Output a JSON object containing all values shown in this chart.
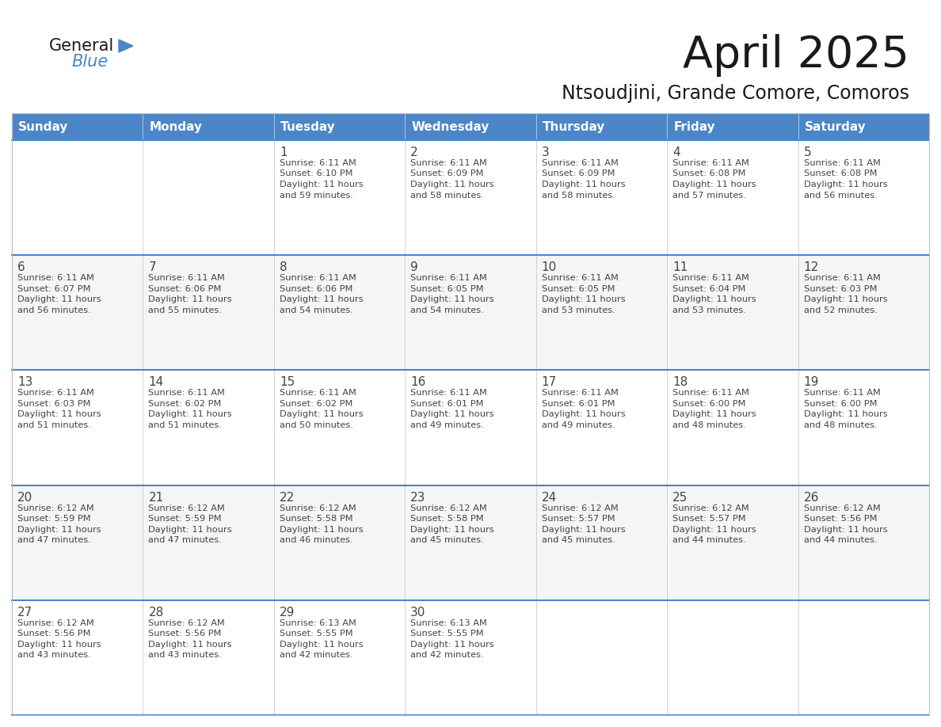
{
  "title": "April 2025",
  "subtitle": "Ntsoudjini, Grande Comore, Comoros",
  "header_bg_color": "#4a86c8",
  "header_text_color": "#ffffff",
  "row_bg_light": "#f5f5f5",
  "row_bg_white": "#ffffff",
  "divider_color": "#4a86c8",
  "text_color": "#444444",
  "days_of_week": [
    "Sunday",
    "Monday",
    "Tuesday",
    "Wednesday",
    "Thursday",
    "Friday",
    "Saturday"
  ],
  "calendar_data": [
    [
      {
        "day": "",
        "sunrise": "",
        "sunset": "",
        "daylight": ""
      },
      {
        "day": "",
        "sunrise": "",
        "sunset": "",
        "daylight": ""
      },
      {
        "day": "1",
        "sunrise": "Sunrise: 6:11 AM",
        "sunset": "Sunset: 6:10 PM",
        "daylight": "Daylight: 11 hours\nand 59 minutes."
      },
      {
        "day": "2",
        "sunrise": "Sunrise: 6:11 AM",
        "sunset": "Sunset: 6:09 PM",
        "daylight": "Daylight: 11 hours\nand 58 minutes."
      },
      {
        "day": "3",
        "sunrise": "Sunrise: 6:11 AM",
        "sunset": "Sunset: 6:09 PM",
        "daylight": "Daylight: 11 hours\nand 58 minutes."
      },
      {
        "day": "4",
        "sunrise": "Sunrise: 6:11 AM",
        "sunset": "Sunset: 6:08 PM",
        "daylight": "Daylight: 11 hours\nand 57 minutes."
      },
      {
        "day": "5",
        "sunrise": "Sunrise: 6:11 AM",
        "sunset": "Sunset: 6:08 PM",
        "daylight": "Daylight: 11 hours\nand 56 minutes."
      }
    ],
    [
      {
        "day": "6",
        "sunrise": "Sunrise: 6:11 AM",
        "sunset": "Sunset: 6:07 PM",
        "daylight": "Daylight: 11 hours\nand 56 minutes."
      },
      {
        "day": "7",
        "sunrise": "Sunrise: 6:11 AM",
        "sunset": "Sunset: 6:06 PM",
        "daylight": "Daylight: 11 hours\nand 55 minutes."
      },
      {
        "day": "8",
        "sunrise": "Sunrise: 6:11 AM",
        "sunset": "Sunset: 6:06 PM",
        "daylight": "Daylight: 11 hours\nand 54 minutes."
      },
      {
        "day": "9",
        "sunrise": "Sunrise: 6:11 AM",
        "sunset": "Sunset: 6:05 PM",
        "daylight": "Daylight: 11 hours\nand 54 minutes."
      },
      {
        "day": "10",
        "sunrise": "Sunrise: 6:11 AM",
        "sunset": "Sunset: 6:05 PM",
        "daylight": "Daylight: 11 hours\nand 53 minutes."
      },
      {
        "day": "11",
        "sunrise": "Sunrise: 6:11 AM",
        "sunset": "Sunset: 6:04 PM",
        "daylight": "Daylight: 11 hours\nand 53 minutes."
      },
      {
        "day": "12",
        "sunrise": "Sunrise: 6:11 AM",
        "sunset": "Sunset: 6:03 PM",
        "daylight": "Daylight: 11 hours\nand 52 minutes."
      }
    ],
    [
      {
        "day": "13",
        "sunrise": "Sunrise: 6:11 AM",
        "sunset": "Sunset: 6:03 PM",
        "daylight": "Daylight: 11 hours\nand 51 minutes."
      },
      {
        "day": "14",
        "sunrise": "Sunrise: 6:11 AM",
        "sunset": "Sunset: 6:02 PM",
        "daylight": "Daylight: 11 hours\nand 51 minutes."
      },
      {
        "day": "15",
        "sunrise": "Sunrise: 6:11 AM",
        "sunset": "Sunset: 6:02 PM",
        "daylight": "Daylight: 11 hours\nand 50 minutes."
      },
      {
        "day": "16",
        "sunrise": "Sunrise: 6:11 AM",
        "sunset": "Sunset: 6:01 PM",
        "daylight": "Daylight: 11 hours\nand 49 minutes."
      },
      {
        "day": "17",
        "sunrise": "Sunrise: 6:11 AM",
        "sunset": "Sunset: 6:01 PM",
        "daylight": "Daylight: 11 hours\nand 49 minutes."
      },
      {
        "day": "18",
        "sunrise": "Sunrise: 6:11 AM",
        "sunset": "Sunset: 6:00 PM",
        "daylight": "Daylight: 11 hours\nand 48 minutes."
      },
      {
        "day": "19",
        "sunrise": "Sunrise: 6:11 AM",
        "sunset": "Sunset: 6:00 PM",
        "daylight": "Daylight: 11 hours\nand 48 minutes."
      }
    ],
    [
      {
        "day": "20",
        "sunrise": "Sunrise: 6:12 AM",
        "sunset": "Sunset: 5:59 PM",
        "daylight": "Daylight: 11 hours\nand 47 minutes."
      },
      {
        "day": "21",
        "sunrise": "Sunrise: 6:12 AM",
        "sunset": "Sunset: 5:59 PM",
        "daylight": "Daylight: 11 hours\nand 47 minutes."
      },
      {
        "day": "22",
        "sunrise": "Sunrise: 6:12 AM",
        "sunset": "Sunset: 5:58 PM",
        "daylight": "Daylight: 11 hours\nand 46 minutes."
      },
      {
        "day": "23",
        "sunrise": "Sunrise: 6:12 AM",
        "sunset": "Sunset: 5:58 PM",
        "daylight": "Daylight: 11 hours\nand 45 minutes."
      },
      {
        "day": "24",
        "sunrise": "Sunrise: 6:12 AM",
        "sunset": "Sunset: 5:57 PM",
        "daylight": "Daylight: 11 hours\nand 45 minutes."
      },
      {
        "day": "25",
        "sunrise": "Sunrise: 6:12 AM",
        "sunset": "Sunset: 5:57 PM",
        "daylight": "Daylight: 11 hours\nand 44 minutes."
      },
      {
        "day": "26",
        "sunrise": "Sunrise: 6:12 AM",
        "sunset": "Sunset: 5:56 PM",
        "daylight": "Daylight: 11 hours\nand 44 minutes."
      }
    ],
    [
      {
        "day": "27",
        "sunrise": "Sunrise: 6:12 AM",
        "sunset": "Sunset: 5:56 PM",
        "daylight": "Daylight: 11 hours\nand 43 minutes."
      },
      {
        "day": "28",
        "sunrise": "Sunrise: 6:12 AM",
        "sunset": "Sunset: 5:56 PM",
        "daylight": "Daylight: 11 hours\nand 43 minutes."
      },
      {
        "day": "29",
        "sunrise": "Sunrise: 6:13 AM",
        "sunset": "Sunset: 5:55 PM",
        "daylight": "Daylight: 11 hours\nand 42 minutes."
      },
      {
        "day": "30",
        "sunrise": "Sunrise: 6:13 AM",
        "sunset": "Sunset: 5:55 PM",
        "daylight": "Daylight: 11 hours\nand 42 minutes."
      },
      {
        "day": "",
        "sunrise": "",
        "sunset": "",
        "daylight": ""
      },
      {
        "day": "",
        "sunrise": "",
        "sunset": "",
        "daylight": ""
      },
      {
        "day": "",
        "sunrise": "",
        "sunset": "",
        "daylight": ""
      }
    ]
  ]
}
